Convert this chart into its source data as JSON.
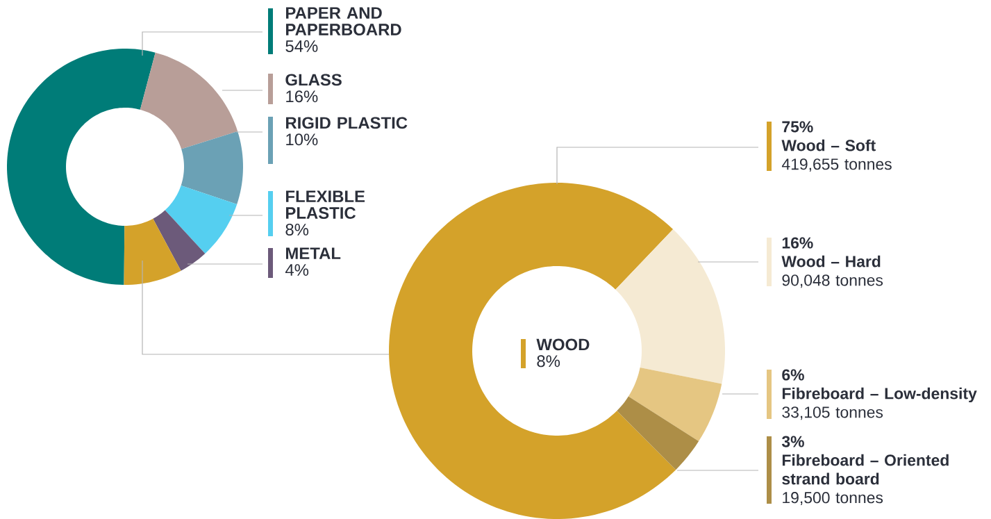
{
  "chart_data": [
    {
      "type": "donut",
      "categories": [
        "PAPER AND PAPERBOARD",
        "GLASS",
        "RIGID PLASTIC",
        "FLEXIBLE PLASTIC",
        "METAL",
        "WOOD"
      ],
      "values": [
        54,
        16,
        10,
        8,
        4,
        8
      ],
      "value_labels": [
        "54%",
        "16%",
        "10%",
        "8%",
        "4%",
        "8%"
      ],
      "colors": [
        "#007c78",
        "#b89e98",
        "#6ba1b5",
        "#55cff0",
        "#6c5a7a",
        "#d4a22a"
      ],
      "legend": "right"
    },
    {
      "type": "donut",
      "categories": [
        "Wood – Soft",
        "Wood – Hard",
        "Fibreboard – Low-density",
        "Fibreboard – Oriented strand board"
      ],
      "values": [
        419655,
        90048,
        33105,
        19500
      ],
      "value_labels": [
        "419,655 tonnes",
        "90,048 tonnes",
        "33,105 tonnes",
        "19,500 tonnes"
      ],
      "annotations": [
        {
          "text": "75%",
          "x": "Wood – Soft"
        },
        {
          "text": "16%",
          "x": "Wood – Hard"
        },
        {
          "text": "6%",
          "x": "Fibreboard – Low-density"
        },
        {
          "text": "3%",
          "x": "Fibreboard – Oriented strand board"
        }
      ],
      "colors": [
        "#d4a22a",
        "#f5ead3",
        "#e5c682",
        "#ad8e47"
      ],
      "legend": "right"
    }
  ]
}
